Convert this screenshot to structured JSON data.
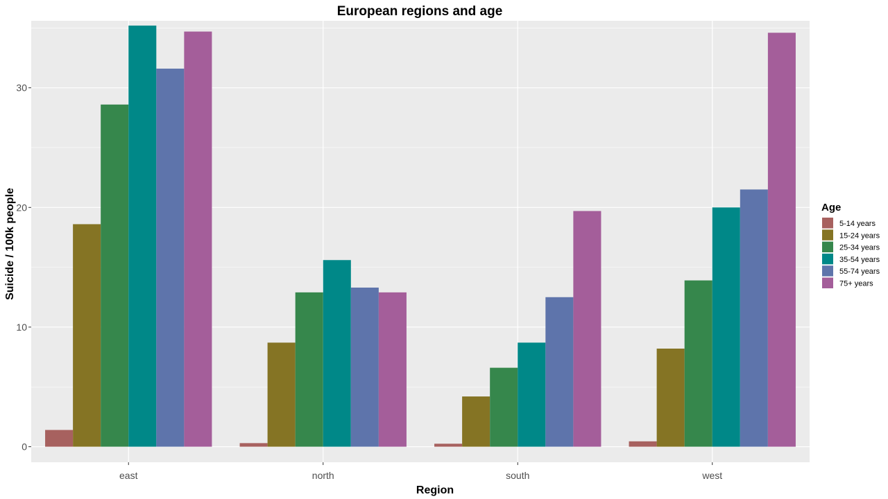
{
  "chart_data": {
    "type": "bar",
    "title": "European regions and age",
    "xlabel": "Region",
    "ylabel": "Suicide / 100k people",
    "categories": [
      "east",
      "north",
      "south",
      "west"
    ],
    "ylim": [
      -1.3,
      35.6
    ],
    "yticks": [
      0,
      10,
      20,
      30
    ],
    "grid": true,
    "legend_title": "Age",
    "legend_position": "right",
    "series": [
      {
        "name": "5-14 years",
        "color": "#A7615F",
        "values": [
          1.4,
          0.3,
          0.25,
          0.45
        ]
      },
      {
        "name": "15-24 years",
        "color": "#857424",
        "values": [
          18.6,
          8.7,
          4.2,
          8.2
        ]
      },
      {
        "name": "25-34 years",
        "color": "#36874C",
        "values": [
          28.6,
          12.9,
          6.6,
          13.9
        ]
      },
      {
        "name": "35-54 years",
        "color": "#008888",
        "values": [
          35.2,
          15.6,
          8.7,
          20.0
        ]
      },
      {
        "name": "55-74 years",
        "color": "#5E74AB",
        "values": [
          31.6,
          13.3,
          12.5,
          21.5
        ]
      },
      {
        "name": "75+ years",
        "color": "#A45E9A",
        "values": [
          34.7,
          12.9,
          19.7,
          34.6
        ]
      }
    ]
  }
}
